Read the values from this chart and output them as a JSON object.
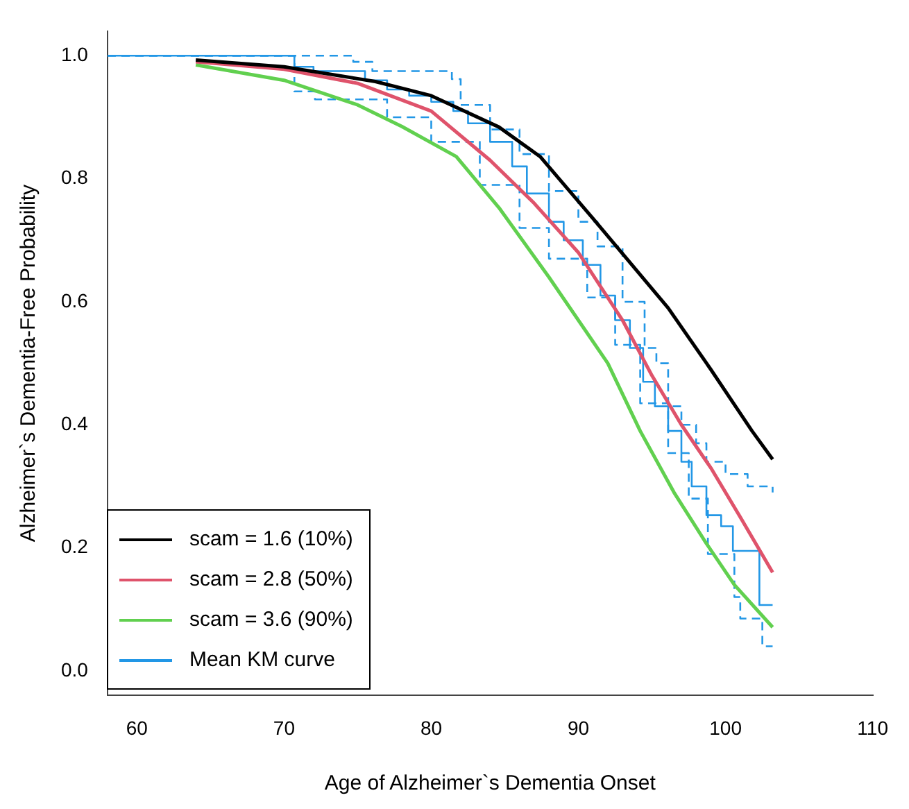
{
  "chart_data": {
    "type": "line",
    "xlabel": "Age of Alzheimer`s Dementia Onset",
    "ylabel": "Alzheimer`s Dementia-Free Probability",
    "xlim": [
      58,
      110
    ],
    "xticks": [
      60,
      70,
      80,
      90,
      100,
      110
    ],
    "ylim": [
      -0.04,
      1.04
    ],
    "yticks": [
      {
        "value": 0,
        "label": "0.0"
      },
      {
        "value": 0.2,
        "label": "0.2"
      },
      {
        "value": 0.4,
        "label": "0.4"
      },
      {
        "value": 0.6,
        "label": "0.6"
      },
      {
        "value": 0.8,
        "label": "0.8"
      },
      {
        "value": 1,
        "label": "1.0"
      }
    ],
    "grid": false,
    "legend": "bottom left",
    "marker": "none",
    "series": [
      {
        "name": "scam = 1.6 (10%)",
        "color": "#000000",
        "line_style": "solid",
        "x": [
          64,
          70,
          76.2,
          80,
          84.6,
          87.4,
          91,
          96.1,
          99,
          101.8,
          103.2
        ],
        "values": [
          0.993,
          0.982,
          0.958,
          0.935,
          0.884,
          0.836,
          0.735,
          0.59,
          0.49,
          0.39,
          0.344
        ]
      },
      {
        "name": "scam = 2.8 (50%)",
        "color": "#df536b",
        "line_style": "solid",
        "x": [
          64,
          70,
          75,
          80,
          84,
          87,
          90,
          93,
          95,
          97,
          99,
          101,
          103.2
        ],
        "values": [
          0.99,
          0.978,
          0.955,
          0.91,
          0.83,
          0.76,
          0.68,
          0.57,
          0.48,
          0.4,
          0.33,
          0.25,
          0.16
        ]
      },
      {
        "name": "scam = 3.6 (90%)",
        "color": "#61d04f",
        "line_style": "solid",
        "x": [
          64,
          70,
          75,
          78,
          81.7,
          84.6,
          88,
          92,
          94.2,
          96.5,
          98.7,
          100.6,
          103.2
        ],
        "values": [
          0.985,
          0.96,
          0.92,
          0.885,
          0.836,
          0.753,
          0.64,
          0.5,
          0.39,
          0.29,
          0.207,
          0.14,
          0.071
        ]
      },
      {
        "name": "Mean KM curve",
        "type": "step",
        "color": "#2297e6",
        "line_style": "solid",
        "x": [
          58,
          70.7,
          72,
          75.5,
          77,
          78.5,
          80,
          81.5,
          82.5,
          84,
          85.5,
          86.5,
          88,
          89,
          90.3,
          91.5,
          92.5,
          93.5,
          94.4,
          95.2,
          96.1,
          97,
          97.7,
          98.7,
          99.7,
          100.5,
          102.3,
          103.2
        ],
        "values": [
          1,
          0.982,
          0.975,
          0.96,
          0.945,
          0.935,
          0.925,
          0.91,
          0.89,
          0.86,
          0.82,
          0.776,
          0.73,
          0.7,
          0.66,
          0.61,
          0.57,
          0.525,
          0.47,
          0.43,
          0.39,
          0.34,
          0.3,
          0.253,
          0.235,
          0.195,
          0.107,
          0.107
        ]
      },
      {
        "type": "step",
        "color": "#2297e6",
        "line_style": "dashed",
        "x": [
          58,
          74.7,
          76,
          81.4,
          82,
          84,
          86,
          88,
          90,
          91.3,
          93,
          94.5,
          95.3,
          96.1,
          97,
          98,
          98.7,
          100,
          101.5,
          103.2
        ],
        "values": [
          1,
          0.99,
          0.975,
          0.962,
          0.92,
          0.88,
          0.84,
          0.78,
          0.73,
          0.69,
          0.6,
          0.525,
          0.5,
          0.43,
          0.4,
          0.37,
          0.34,
          0.32,
          0.3,
          0.29
        ]
      },
      {
        "type": "step",
        "color": "#2297e6",
        "line_style": "dashed",
        "x": [
          58,
          70.7,
          72.1,
          77,
          80,
          83.3,
          86,
          88,
          90.6,
          92.5,
          94.2,
          96.1,
          97.5,
          98.8,
          100.6,
          101,
          102.5,
          103.2
        ],
        "values": [
          1,
          0.942,
          0.929,
          0.9,
          0.86,
          0.79,
          0.72,
          0.67,
          0.607,
          0.53,
          0.435,
          0.354,
          0.28,
          0.19,
          0.12,
          0.085,
          0.04,
          0.04
        ]
      }
    ]
  }
}
